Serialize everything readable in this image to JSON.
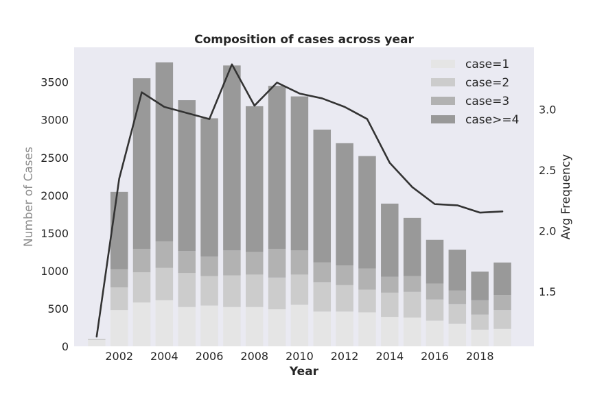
{
  "chart_data": {
    "type": "bar",
    "title": "Composition of cases across year",
    "xlabel": "Year",
    "ylabel": "Number of Cases",
    "y2label": "Avg Frequency",
    "stacked": true,
    "x": [
      2001,
      2002,
      2003,
      2004,
      2005,
      2006,
      2007,
      2008,
      2009,
      2010,
      2011,
      2012,
      2013,
      2014,
      2015,
      2016,
      2017,
      2018,
      2019
    ],
    "x_ticks": [
      "2002",
      "2004",
      "2006",
      "2008",
      "2010",
      "2012",
      "2014",
      "2016",
      "2018"
    ],
    "y_ticks": [
      "0",
      "500",
      "1000",
      "1500",
      "2000",
      "2500",
      "3000",
      "3500"
    ],
    "y2_ticks": [
      "1.5",
      "2.0",
      "2.5",
      "3.0"
    ],
    "ylim": [
      0,
      3960
    ],
    "y2lim": [
      1.05,
      3.51
    ],
    "series": [
      {
        "name": "case=1",
        "color": "#e5e5e5",
        "values": [
          85,
          480,
          580,
          610,
          520,
          540,
          520,
          520,
          490,
          550,
          460,
          460,
          450,
          390,
          380,
          340,
          300,
          220,
          230
        ]
      },
      {
        "name": "case=2",
        "color": "#cccccc",
        "values": [
          10,
          300,
          400,
          430,
          450,
          390,
          420,
          430,
          420,
          400,
          390,
          350,
          300,
          320,
          340,
          280,
          260,
          200,
          250
        ]
      },
      {
        "name": "case=3",
        "color": "#b2b2b2",
        "values": [
          2,
          240,
          310,
          350,
          290,
          260,
          330,
          300,
          380,
          320,
          260,
          260,
          280,
          210,
          210,
          210,
          180,
          190,
          200
        ]
      },
      {
        "name": "case>=4",
        "color": "#999999",
        "values": [
          2,
          1025,
          2260,
          2370,
          2000,
          1830,
          2450,
          1930,
          2160,
          2040,
          1760,
          1620,
          1490,
          970,
          770,
          580,
          540,
          380,
          430
        ]
      }
    ],
    "line": {
      "color": "#333333",
      "values": [
        1.13,
        2.43,
        3.14,
        3.02,
        2.97,
        2.92,
        3.37,
        3.03,
        3.22,
        3.13,
        3.09,
        3.02,
        2.92,
        2.56,
        2.36,
        2.22,
        2.21,
        2.15,
        2.16
      ]
    },
    "legend": "top-right",
    "grid": false,
    "background": "#eaeaf2"
  }
}
